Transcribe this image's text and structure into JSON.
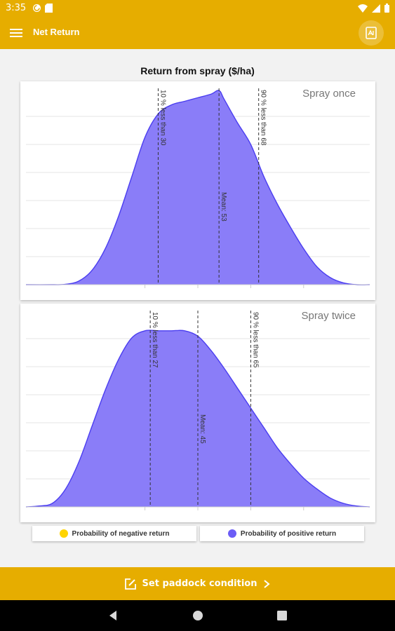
{
  "status_bar": {
    "time": "3:35"
  },
  "app_bar": {
    "title": "Net Return"
  },
  "page_title": "Return from spray ($/ha)",
  "legend": [
    {
      "label": "Probability of negative return",
      "color": "#ffd400"
    },
    {
      "label": "Probability of positive return",
      "color": "#6b5cf6"
    }
  ],
  "bottom_action": {
    "label": "Set paddock condition"
  },
  "colors": {
    "accent": "#e6ad00",
    "fill": "#8a7df8",
    "stroke": "#4a3df0"
  },
  "chart_data": [
    {
      "type": "area",
      "title": "Spray once",
      "xlim": [
        -20,
        110
      ],
      "ylim": [
        0,
        1.1
      ],
      "x": [
        -20,
        -10,
        -5,
        0,
        5,
        10,
        15,
        20,
        25,
        30,
        35,
        40,
        45,
        50,
        53,
        55,
        60,
        65,
        70,
        75,
        80,
        85,
        90,
        95,
        100,
        105,
        110
      ],
      "y": [
        0,
        0,
        0.002,
        0.02,
        0.08,
        0.2,
        0.38,
        0.6,
        0.82,
        0.95,
        1.0,
        1.02,
        1.04,
        1.06,
        1.08,
        1.03,
        0.9,
        0.78,
        0.6,
        0.45,
        0.32,
        0.2,
        0.1,
        0.04,
        0.01,
        0,
        0
      ],
      "grid": true,
      "annotations": [
        {
          "x": 30,
          "text": "10 % less than 30"
        },
        {
          "x": 53,
          "text": "Mean: 53"
        },
        {
          "x": 68,
          "text": "90 % less than 68"
        }
      ]
    },
    {
      "type": "area",
      "title": "Spray twice",
      "xlim": [
        -20,
        110
      ],
      "ylim": [
        0,
        1.1
      ],
      "x": [
        -20,
        -15,
        -10,
        -5,
        0,
        5,
        10,
        15,
        20,
        25,
        30,
        35,
        40,
        45,
        50,
        55,
        60,
        65,
        70,
        75,
        80,
        85,
        90,
        95,
        100,
        105,
        110
      ],
      "y": [
        0,
        0.005,
        0.02,
        0.1,
        0.25,
        0.45,
        0.65,
        0.82,
        0.94,
        0.98,
        0.98,
        0.98,
        0.98,
        0.95,
        0.87,
        0.77,
        0.66,
        0.55,
        0.44,
        0.33,
        0.24,
        0.16,
        0.1,
        0.05,
        0.02,
        0.005,
        0
      ],
      "grid": true,
      "annotations": [
        {
          "x": 27,
          "text": "10 % less than 27"
        },
        {
          "x": 45,
          "text": "Mean: 45"
        },
        {
          "x": 65,
          "text": "90 % less than 65"
        }
      ]
    }
  ]
}
